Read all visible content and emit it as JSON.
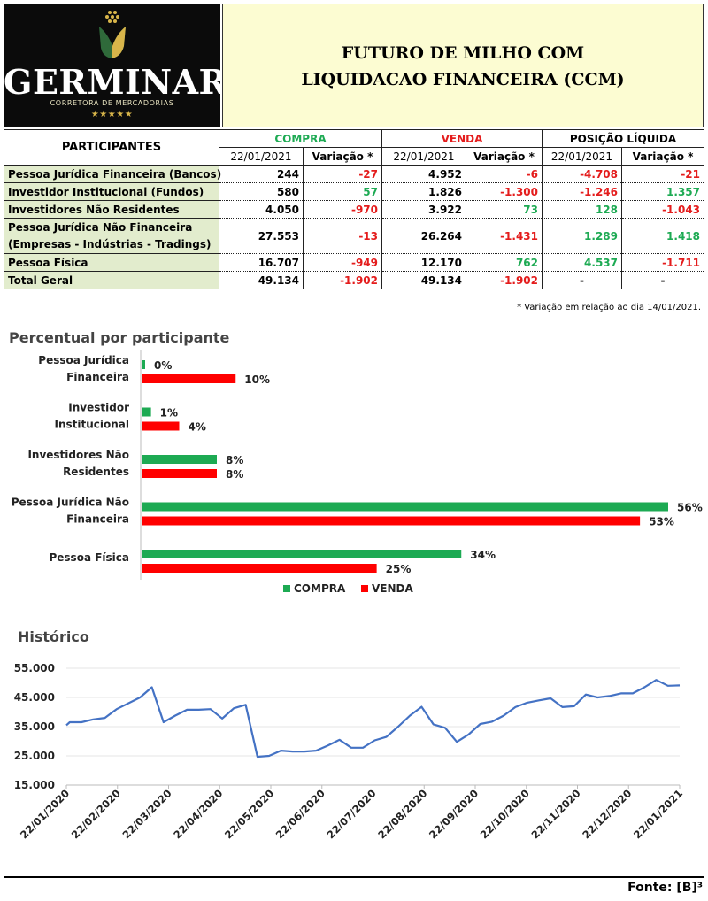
{
  "header": {
    "brand": "GERMINAR",
    "tagline": "CORRETORA DE MERCADORIAS",
    "stars": "★★★★★",
    "title_line1": "FUTURO DE MILHO COM",
    "title_line2": "LIQUIDACAO FINANCEIRA (CCM)"
  },
  "table": {
    "participants_header": "PARTICIPANTES",
    "group_headers": {
      "compra": "COMPRA",
      "venda": "VENDA",
      "posicao": "POSIÇÃO LÍQUIDA"
    },
    "sub_headers": {
      "date": "22/01/2021",
      "variation": "Variação *"
    },
    "rows": [
      {
        "label": "Pessoa Jurídica Financeira (Bancos)",
        "compra": "244",
        "compra_var": "-27",
        "venda": "4.952",
        "venda_var": "-6",
        "pos": "-4.708",
        "pos_var": "-21"
      },
      {
        "label": "Investidor Institucional (Fundos)",
        "compra": "580",
        "compra_var": "57",
        "venda": "1.826",
        "venda_var": "-1.300",
        "pos": "-1.246",
        "pos_var": "1.357"
      },
      {
        "label": "Investidores Não Residentes",
        "compra": "4.050",
        "compra_var": "-970",
        "venda": "3.922",
        "venda_var": "73",
        "pos": "128",
        "pos_var": "-1.043"
      },
      {
        "label": "Pessoa Jurídica Não Financeira",
        "label2": "(Empresas - Indústrias - Tradings)",
        "compra": "27.553",
        "compra_var": "-13",
        "venda": "26.264",
        "venda_var": "-1.431",
        "pos": "1.289",
        "pos_var": "1.418"
      },
      {
        "label": "Pessoa Física",
        "compra": "16.707",
        "compra_var": "-949",
        "venda": "12.170",
        "venda_var": "762",
        "pos": "4.537",
        "pos_var": "-1.711"
      },
      {
        "label": "Total Geral",
        "compra": "49.134",
        "compra_var": "-1.902",
        "venda": "49.134",
        "venda_var": "-1.902",
        "pos": "-",
        "pos_var": "-"
      }
    ],
    "footnote": "* Variação em relação ao dia 14/01/2021."
  },
  "colors": {
    "compra": "#1daa53",
    "venda": "#ff0000",
    "line": "#4472c4",
    "label_bg": "#e2eccd",
    "title_bg": "#fcfcd2"
  },
  "source": "Fonte: [B]³",
  "chart_data": [
    {
      "type": "bar",
      "orientation": "horizontal",
      "title": "Percentual por participante",
      "categories": [
        [
          "Pessoa Jurídica",
          "Financeira"
        ],
        [
          "Investidor",
          "Institucional"
        ],
        [
          "Investidores Não",
          "Residentes"
        ],
        [
          "Pessoa Jurídica Não",
          "Financeira"
        ],
        [
          "Pessoa Física"
        ]
      ],
      "series": [
        {
          "name": "COMPRA",
          "values": [
            0,
            1,
            8,
            56,
            34
          ],
          "labels": [
            "0%",
            "1%",
            "8%",
            "56%",
            "34%"
          ]
        },
        {
          "name": "VENDA",
          "values": [
            10,
            4,
            8,
            53,
            25
          ],
          "labels": [
            "10%",
            "4%",
            "8%",
            "53%",
            "25%"
          ]
        }
      ],
      "xlim": [
        0,
        56
      ],
      "legend": "bottom"
    },
    {
      "type": "line",
      "title": "Histórico",
      "ylim": [
        15000,
        55000
      ],
      "yticks": [
        "15.000",
        "25.000",
        "35.000",
        "45.000",
        "55.000"
      ],
      "ytick_values": [
        15000,
        25000,
        35000,
        45000,
        55000
      ],
      "xticks": [
        "22/01/2020",
        "22/02/2020",
        "22/03/2020",
        "22/04/2020",
        "22/05/2020",
        "22/06/2020",
        "22/07/2020",
        "22/08/2020",
        "22/09/2020",
        "22/10/2020",
        "22/11/2020",
        "22/12/2020",
        "22/01/2021"
      ],
      "x": [
        "2020-01-22",
        "2020-01-24",
        "2020-01-31",
        "2020-02-07",
        "2020-02-14",
        "2020-02-21",
        "2020-03-06",
        "2020-03-13",
        "2020-03-20",
        "2020-03-27",
        "2020-04-03",
        "2020-04-10",
        "2020-04-17",
        "2020-04-24",
        "2020-05-01",
        "2020-05-08",
        "2020-05-15",
        "2020-05-22",
        "2020-05-29",
        "2020-06-05",
        "2020-06-12",
        "2020-06-19",
        "2020-06-26",
        "2020-07-03",
        "2020-07-10",
        "2020-07-17",
        "2020-07-24",
        "2020-07-31",
        "2020-08-07",
        "2020-08-14",
        "2020-08-21",
        "2020-08-28",
        "2020-09-04",
        "2020-09-11",
        "2020-09-18",
        "2020-09-25",
        "2020-10-02",
        "2020-10-09",
        "2020-10-16",
        "2020-10-23",
        "2020-10-30",
        "2020-11-06",
        "2020-11-13",
        "2020-11-20",
        "2020-11-27",
        "2020-12-04",
        "2020-12-11",
        "2020-12-18",
        "2020-12-25",
        "2021-01-01",
        "2021-01-08",
        "2021-01-15",
        "2021-01-22"
      ],
      "values": [
        35500,
        36500,
        36500,
        37500,
        38000,
        41000,
        45000,
        48500,
        36500,
        38800,
        40800,
        40800,
        41000,
        37800,
        41300,
        42500,
        24700,
        25000,
        26800,
        26500,
        26500,
        26800,
        28500,
        30500,
        27800,
        27800,
        30300,
        31500,
        35000,
        38800,
        41800,
        35800,
        34600,
        29800,
        32300,
        35900,
        36700,
        38800,
        41700,
        43200,
        44000,
        44700,
        41700,
        42000,
        46000,
        45000,
        45500,
        46400,
        46400,
        48500,
        51000,
        49000,
        49134
      ]
    }
  ]
}
